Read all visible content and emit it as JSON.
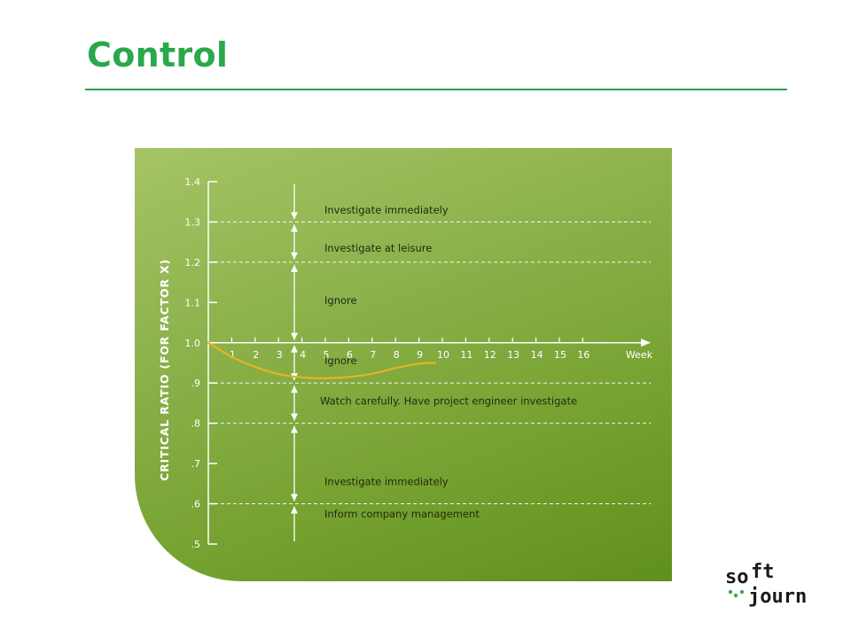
{
  "slide": {
    "title": "Control"
  },
  "chart_data": {
    "type": "line",
    "ylabel": "CRITICAL RATIO (FOR FACTOR X)",
    "xlabel": "Week",
    "ylim": [
      0.5,
      1.4
    ],
    "xlim": [
      0,
      18
    ],
    "y_ticks": [
      {
        "value": 1.4,
        "label": "1.4"
      },
      {
        "value": 1.3,
        "label": "1.3"
      },
      {
        "value": 1.2,
        "label": "1.2"
      },
      {
        "value": 1.1,
        "label": "1.1"
      },
      {
        "value": 1.0,
        "label": "1.0"
      },
      {
        "value": 0.9,
        "label": ".9"
      },
      {
        "value": 0.8,
        "label": ".8"
      },
      {
        "value": 0.7,
        "label": ".7"
      },
      {
        "value": 0.6,
        "label": ".6"
      },
      {
        "value": 0.5,
        "label": ".5"
      }
    ],
    "x_ticks": [
      {
        "value": 1,
        "label": "1"
      },
      {
        "value": 2,
        "label": "2"
      },
      {
        "value": 3,
        "label": "3"
      },
      {
        "value": 4,
        "label": "4"
      },
      {
        "value": 5,
        "label": "5"
      },
      {
        "value": 6,
        "label": "6"
      },
      {
        "value": 7,
        "label": "7"
      },
      {
        "value": 8,
        "label": "8"
      },
      {
        "value": 9,
        "label": "9"
      },
      {
        "value": 10,
        "label": "10"
      },
      {
        "value": 11,
        "label": "11"
      },
      {
        "value": 12,
        "label": "12"
      },
      {
        "value": 13,
        "label": "13"
      },
      {
        "value": 14,
        "label": "14"
      },
      {
        "value": 15,
        "label": "15"
      },
      {
        "value": 16,
        "label": "16"
      }
    ],
    "threshold_lines": [
      1.3,
      1.2,
      0.9,
      0.8,
      0.6
    ],
    "series": [
      {
        "x": [
          0,
          1,
          2,
          3,
          4,
          5,
          6,
          7,
          8,
          9,
          9.7
        ],
        "values": [
          1.0,
          0.965,
          0.94,
          0.922,
          0.914,
          0.912,
          0.915,
          0.923,
          0.937,
          0.948,
          0.95
        ]
      }
    ],
    "regions": [
      {
        "label": "Investigate immediately",
        "from": 1.3,
        "to": 1.4,
        "label_value": 1.33
      },
      {
        "label": "Investigate at leisure",
        "from": 1.2,
        "to": 1.3,
        "label_value": 1.235
      },
      {
        "label": "Ignore",
        "from": 1.0,
        "to": 1.2,
        "label_value": 1.105
      },
      {
        "label": "Ignore",
        "from": 0.9,
        "to": 1.0,
        "label_value": 0.955
      },
      {
        "label": "Watch carefully. Have project engineer investigate",
        "from": 0.8,
        "to": 0.9,
        "label_value": 0.855
      },
      {
        "label": "Investigate immediately",
        "from": 0.6,
        "to": 0.8,
        "label_value": 0.655
      },
      {
        "label": "Inform company management",
        "from": 0.5,
        "to": 0.6,
        "label_value": 0.575
      }
    ],
    "colors": {
      "line": "#e6b325",
      "axis": "#ffffff",
      "text_dark": "#1e2a10",
      "text_light": "#ffffff"
    },
    "grid": false
  },
  "logo": {
    "text_line1": "so",
    "text_line1b": "ft",
    "text_line2": "journ"
  }
}
